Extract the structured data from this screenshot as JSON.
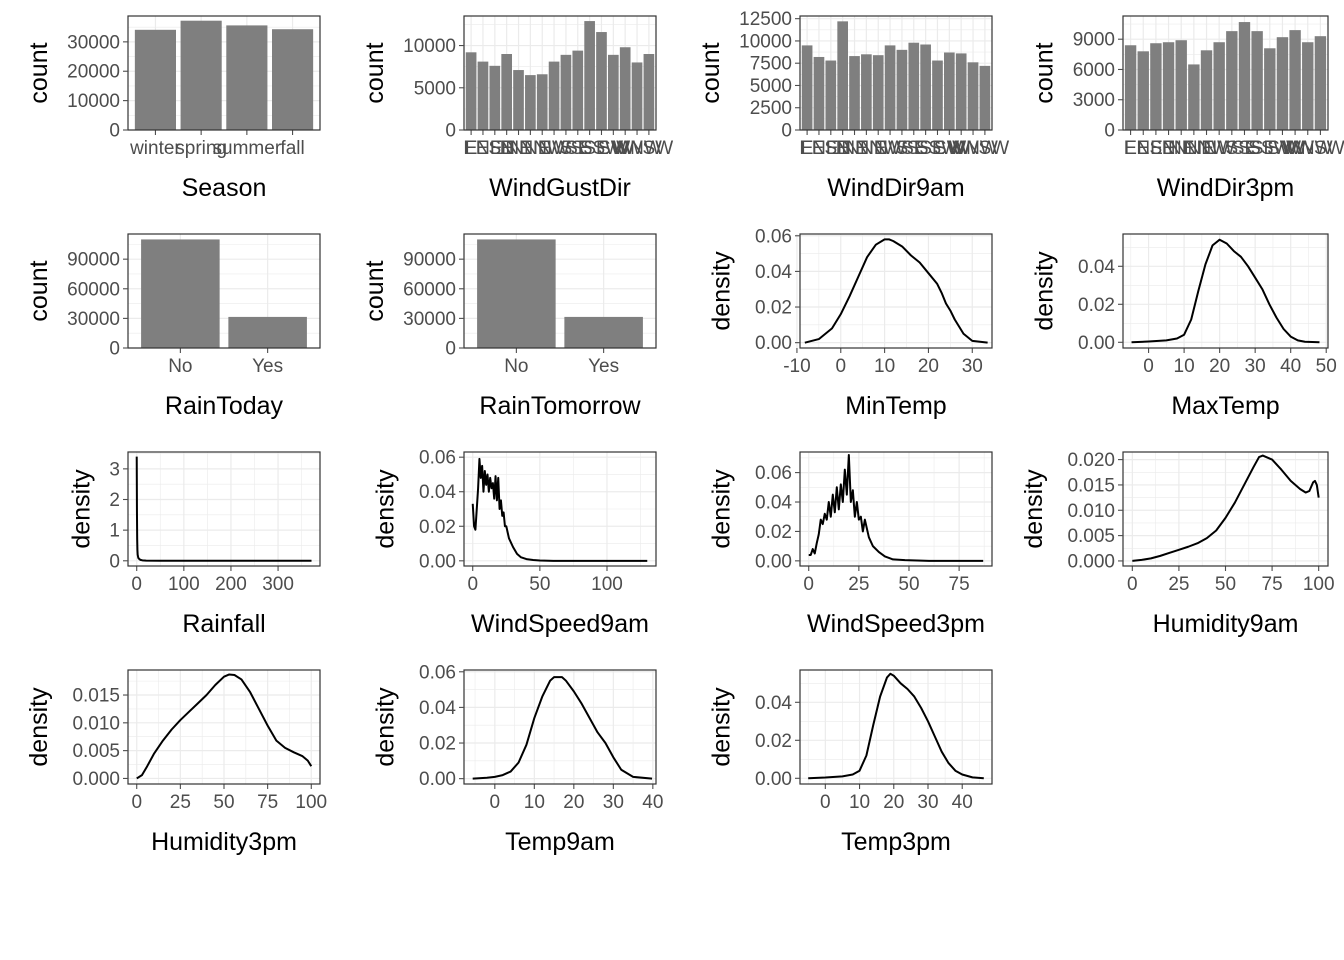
{
  "colors": {
    "bar": "#7f7f7f",
    "grid": "#ebebeb",
    "axis": "#4d4d4d",
    "line": "#000000",
    "text": "#000000",
    "tick_text": "#4d4d4d"
  },
  "chart_data": [
    {
      "type": "bar",
      "xlabel": "Season",
      "ylabel": "count",
      "categories": [
        "winter",
        "spring",
        "summer",
        "fall"
      ],
      "values": [
        34100,
        37200,
        35600,
        34300
      ],
      "ylim": [
        0,
        38800
      ],
      "yticks": [
        0,
        10000,
        20000,
        30000
      ]
    },
    {
      "type": "bar",
      "xlabel": "WindGustDir",
      "ylabel": "count",
      "categories": [
        "E",
        "ENE",
        "ESE",
        "N",
        "NE",
        "NNE",
        "NNW",
        "NW",
        "S",
        "SE",
        "SSE",
        "SSW",
        "SW",
        "W",
        "WNW",
        "WSW"
      ],
      "values": [
        9200,
        8100,
        7600,
        9000,
        7100,
        6500,
        6600,
        8100,
        8900,
        9400,
        12900,
        11600,
        8900,
        9800,
        8000,
        9000
      ],
      "ylim": [
        0,
        13500
      ],
      "yticks": [
        0,
        5000,
        10000
      ]
    },
    {
      "type": "bar",
      "xlabel": "WindDir9am",
      "ylabel": "count",
      "categories": [
        "E",
        "ENE",
        "ESE",
        "N",
        "NE",
        "NNE",
        "NNW",
        "NW",
        "S",
        "SE",
        "SSE",
        "SSW",
        "SW",
        "W",
        "WNW",
        "WSW"
      ],
      "values": [
        9500,
        8200,
        7800,
        12200,
        8300,
        8500,
        8400,
        9500,
        9000,
        9800,
        9600,
        7800,
        8700,
        8600,
        7600,
        7200
      ],
      "ylim": [
        0,
        12800
      ],
      "yticks": [
        0,
        2500,
        5000,
        7500,
        10000,
        12500
      ]
    },
    {
      "type": "bar",
      "xlabel": "WindDir3pm",
      "ylabel": "count",
      "categories": [
        "E",
        "ENE",
        "ESE",
        "N",
        "NE",
        "NNE",
        "NNW",
        "NW",
        "S",
        "SE",
        "SSE",
        "SSW",
        "SW",
        "W",
        "WNW",
        "WSW"
      ],
      "values": [
        8400,
        7800,
        8600,
        8700,
        8900,
        6500,
        7900,
        8700,
        9800,
        10700,
        9800,
        8100,
        9200,
        9900,
        8700,
        9300
      ],
      "ylim": [
        0,
        11300
      ],
      "yticks": [
        0,
        3000,
        6000,
        9000
      ]
    },
    {
      "type": "bar",
      "xlabel": "RainToday",
      "ylabel": "count",
      "categories": [
        "No",
        "Yes"
      ],
      "values": [
        110000,
        31500
      ],
      "ylim": [
        0,
        115500
      ],
      "yticks": [
        0,
        30000,
        60000,
        90000
      ]
    },
    {
      "type": "bar",
      "xlabel": "RainTomorrow",
      "ylabel": "count",
      "categories": [
        "No",
        "Yes"
      ],
      "values": [
        110000,
        31500
      ],
      "ylim": [
        0,
        115500
      ],
      "yticks": [
        0,
        30000,
        60000,
        90000
      ]
    },
    {
      "type": "line",
      "xlabel": "MinTemp",
      "ylabel": "density",
      "xlim": [
        -9.3,
        34.5
      ],
      "ylim": [
        -0.003,
        0.061
      ],
      "xticks": [
        -10,
        0,
        10,
        20,
        30
      ],
      "yticks": [
        0.0,
        0.02,
        0.04,
        0.06
      ],
      "ytick_labels": [
        "0.00",
        "0.02",
        "0.04",
        "0.06"
      ],
      "x": [
        -8.2,
        -5,
        -2,
        0,
        2,
        4,
        6,
        8,
        10,
        11,
        12,
        14,
        16,
        18,
        20,
        22,
        23,
        24,
        25,
        26,
        28,
        30,
        33.5
      ],
      "y": [
        0.0,
        0.002,
        0.008,
        0.016,
        0.026,
        0.037,
        0.048,
        0.055,
        0.058,
        0.058,
        0.057,
        0.054,
        0.049,
        0.045,
        0.039,
        0.033,
        0.028,
        0.022,
        0.018,
        0.013,
        0.005,
        0.001,
        0.0
      ]
    },
    {
      "type": "line",
      "xlabel": "MaxTemp",
      "ylabel": "density",
      "xlim": [
        -7.2,
        50.5
      ],
      "ylim": [
        -0.003,
        0.057
      ],
      "xticks": [
        0,
        10,
        20,
        30,
        40,
        50
      ],
      "yticks": [
        0.0,
        0.02,
        0.04
      ],
      "ytick_labels": [
        "0.00",
        "0.02",
        "0.04"
      ],
      "x": [
        -4.8,
        0,
        5,
        8,
        10,
        12,
        14,
        16,
        18,
        20,
        22,
        24,
        26,
        28,
        30,
        32,
        34,
        36,
        38,
        40,
        42,
        44,
        48.1
      ],
      "y": [
        0.0,
        0.0004,
        0.001,
        0.002,
        0.004,
        0.012,
        0.027,
        0.041,
        0.051,
        0.054,
        0.052,
        0.048,
        0.045,
        0.04,
        0.034,
        0.028,
        0.02,
        0.013,
        0.007,
        0.003,
        0.001,
        0.0003,
        0.0
      ]
    },
    {
      "type": "line",
      "xlabel": "Rainfall",
      "ylabel": "density",
      "xlim": [
        -18.5,
        389
      ],
      "ylim": [
        -0.17,
        3.55
      ],
      "xticks": [
        0,
        100,
        200,
        300
      ],
      "yticks": [
        0,
        1,
        2,
        3
      ],
      "x": [
        0,
        0.5,
        1,
        1.5,
        2,
        3,
        4,
        6,
        8,
        12,
        20,
        50,
        100,
        200,
        300,
        371
      ],
      "y": [
        3.4,
        1.6,
        0.7,
        0.35,
        0.2,
        0.12,
        0.08,
        0.05,
        0.03,
        0.015,
        0.005,
        0.001,
        0.0,
        0.0,
        0.0,
        0.0
      ]
    },
    {
      "type": "line",
      "xlabel": "WindSpeed9am",
      "ylabel": "density",
      "xlim": [
        -6.5,
        136.5
      ],
      "ylim": [
        -0.003,
        0.063
      ],
      "xticks": [
        0,
        50,
        100
      ],
      "yticks": [
        0.0,
        0.02,
        0.04,
        0.06
      ],
      "ytick_labels": [
        "0.00",
        "0.02",
        "0.04",
        "0.06"
      ],
      "x": [
        0,
        1,
        2,
        3,
        4,
        5,
        6,
        7,
        8,
        9,
        10,
        11,
        12,
        13,
        14,
        15,
        16,
        17,
        18,
        19,
        20,
        21,
        22,
        23,
        24,
        25,
        27,
        30,
        33,
        36,
        40,
        45,
        50,
        60,
        80,
        100,
        130
      ],
      "y": [
        0.033,
        0.02,
        0.018,
        0.03,
        0.042,
        0.059,
        0.048,
        0.055,
        0.04,
        0.052,
        0.044,
        0.05,
        0.04,
        0.048,
        0.042,
        0.045,
        0.036,
        0.049,
        0.035,
        0.048,
        0.03,
        0.035,
        0.026,
        0.028,
        0.02,
        0.02,
        0.013,
        0.008,
        0.004,
        0.002,
        0.001,
        0.0005,
        0.0002,
        0.0,
        0.0,
        0.0,
        0.0
      ]
    },
    {
      "type": "line",
      "xlabel": "WindSpeed3pm",
      "ylabel": "density",
      "xlim": [
        -4.35,
        91.4
      ],
      "ylim": [
        -0.0035,
        0.074
      ],
      "xticks": [
        0,
        25,
        50,
        75
      ],
      "yticks": [
        0.0,
        0.02,
        0.04,
        0.06
      ],
      "ytick_labels": [
        "0.00",
        "0.02",
        "0.04",
        "0.06"
      ],
      "x": [
        0,
        1,
        2,
        3,
        4,
        5,
        6,
        7,
        8,
        9,
        10,
        11,
        12,
        13,
        14,
        15,
        16,
        17,
        18,
        19,
        20,
        21,
        22,
        23,
        24,
        25,
        26,
        27,
        28,
        30,
        32,
        35,
        38,
        42,
        48,
        60,
        87
      ],
      "y": [
        0.004,
        0.004,
        0.008,
        0.005,
        0.012,
        0.018,
        0.028,
        0.025,
        0.032,
        0.028,
        0.04,
        0.03,
        0.045,
        0.033,
        0.05,
        0.035,
        0.052,
        0.04,
        0.062,
        0.045,
        0.072,
        0.04,
        0.048,
        0.03,
        0.04,
        0.028,
        0.03,
        0.02,
        0.028,
        0.016,
        0.01,
        0.006,
        0.003,
        0.001,
        0.0005,
        0.0,
        0.0
      ]
    },
    {
      "type": "line",
      "xlabel": "Humidity9am",
      "ylabel": "density",
      "xlim": [
        -5,
        105
      ],
      "ylim": [
        -0.001,
        0.0215
      ],
      "xticks": [
        0,
        25,
        50,
        75,
        100
      ],
      "yticks": [
        0.0,
        0.005,
        0.01,
        0.015,
        0.02
      ],
      "ytick_labels": [
        "0.000",
        "0.005",
        "0.010",
        "0.015",
        "0.020"
      ],
      "x": [
        0,
        5,
        10,
        15,
        20,
        25,
        30,
        35,
        40,
        45,
        50,
        55,
        60,
        65,
        68,
        70,
        75,
        80,
        85,
        90,
        93,
        95,
        97,
        98,
        99,
        100
      ],
      "y": [
        0.0,
        0.0002,
        0.0005,
        0.001,
        0.0016,
        0.0022,
        0.0028,
        0.0035,
        0.0045,
        0.006,
        0.0085,
        0.0115,
        0.015,
        0.0185,
        0.0205,
        0.0208,
        0.02,
        0.018,
        0.0158,
        0.0142,
        0.0135,
        0.0138,
        0.0155,
        0.0158,
        0.015,
        0.0125
      ]
    },
    {
      "type": "line",
      "xlabel": "Humidity3pm",
      "ylabel": "density",
      "xlim": [
        -5,
        105
      ],
      "ylim": [
        -0.001,
        0.0195
      ],
      "xticks": [
        0,
        25,
        50,
        75,
        100
      ],
      "yticks": [
        0.0,
        0.005,
        0.01,
        0.015
      ],
      "ytick_labels": [
        "0.000",
        "0.005",
        "0.010",
        "0.015"
      ],
      "x": [
        0,
        3,
        6,
        10,
        15,
        20,
        25,
        30,
        35,
        40,
        45,
        50,
        53,
        56,
        60,
        65,
        70,
        75,
        80,
        85,
        90,
        95,
        98,
        100
      ],
      "y": [
        0.0,
        0.0006,
        0.0022,
        0.0045,
        0.0068,
        0.0088,
        0.0105,
        0.012,
        0.0135,
        0.015,
        0.0168,
        0.0183,
        0.0187,
        0.0186,
        0.0178,
        0.0155,
        0.0125,
        0.0095,
        0.0068,
        0.0055,
        0.0047,
        0.004,
        0.0032,
        0.0022
      ]
    },
    {
      "type": "line",
      "xlabel": "Temp9am",
      "ylabel": "density",
      "xlim": [
        -7.8,
        40.8
      ],
      "ylim": [
        -0.003,
        0.061
      ],
      "xticks": [
        0,
        10,
        20,
        30,
        40
      ],
      "yticks": [
        0.0,
        0.02,
        0.04,
        0.06
      ],
      "ytick_labels": [
        "0.00",
        "0.02",
        "0.04",
        "0.06"
      ],
      "x": [
        -5.6,
        -2,
        0,
        2,
        4,
        6,
        8,
        10,
        12,
        14,
        15,
        16,
        17,
        18,
        20,
        22,
        24,
        26,
        28,
        30,
        32,
        35,
        39.8
      ],
      "y": [
        0.0,
        0.0005,
        0.001,
        0.002,
        0.004,
        0.009,
        0.019,
        0.034,
        0.046,
        0.055,
        0.057,
        0.057,
        0.057,
        0.055,
        0.049,
        0.042,
        0.034,
        0.026,
        0.02,
        0.012,
        0.005,
        0.001,
        0.0
      ]
    },
    {
      "type": "line",
      "xlabel": "Temp3pm",
      "ylabel": "density",
      "xlim": [
        -7.4,
        48.7
      ],
      "ylim": [
        -0.003,
        0.057
      ],
      "xticks": [
        0,
        10,
        20,
        30,
        40
      ],
      "yticks": [
        0.0,
        0.02,
        0.04
      ],
      "ytick_labels": [
        "0.00",
        "0.02",
        "0.04"
      ],
      "x": [
        -5,
        0,
        5,
        8,
        10,
        12,
        14,
        16,
        18,
        19,
        20,
        22,
        24,
        26,
        28,
        30,
        32,
        34,
        36,
        38,
        40,
        43,
        46.3
      ],
      "y": [
        0.0,
        0.0004,
        0.001,
        0.002,
        0.004,
        0.012,
        0.028,
        0.043,
        0.053,
        0.055,
        0.054,
        0.05,
        0.047,
        0.043,
        0.037,
        0.03,
        0.022,
        0.014,
        0.008,
        0.004,
        0.002,
        0.0005,
        0.0
      ]
    }
  ]
}
